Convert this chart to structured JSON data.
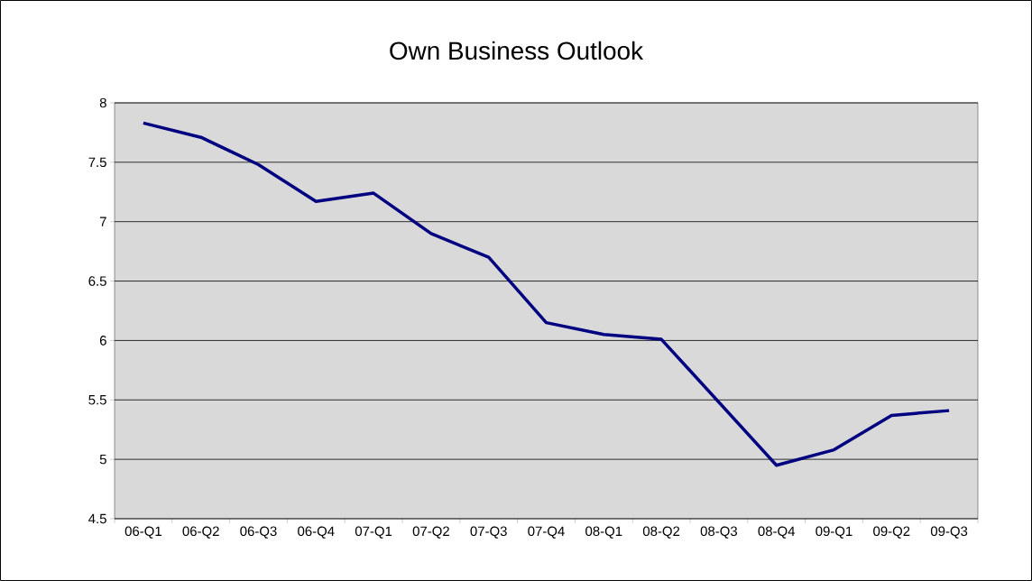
{
  "chart_data": {
    "type": "line",
    "title": "Own Business Outlook",
    "categories": [
      "06-Q1",
      "06-Q2",
      "06-Q3",
      "06-Q4",
      "07-Q1",
      "07-Q2",
      "07-Q3",
      "07-Q4",
      "08-Q1",
      "08-Q2",
      "08-Q3",
      "08-Q4",
      "09-Q1",
      "09-Q2",
      "09-Q3"
    ],
    "series": [
      {
        "color": "#000080",
        "values": [
          7.83,
          7.71,
          7.48,
          7.17,
          7.24,
          6.9,
          6.7,
          6.15,
          6.05,
          6.01,
          5.48,
          4.95,
          5.08,
          5.37,
          5.41
        ]
      }
    ],
    "ylim": [
      4.5,
      8
    ],
    "yticks": [
      4.5,
      5,
      5.5,
      6,
      6.5,
      7,
      7.5,
      8
    ],
    "grid": "y",
    "marker": "none",
    "line_style": "solid"
  }
}
